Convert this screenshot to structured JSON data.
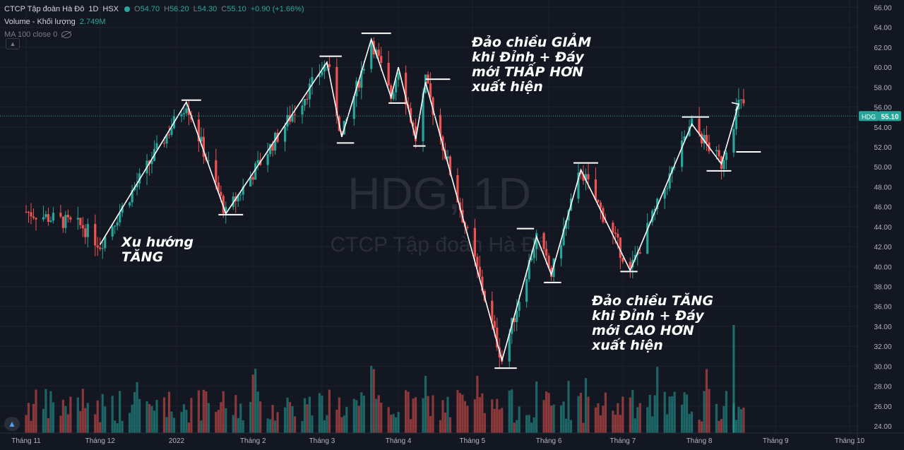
{
  "legend": {
    "symbol": "CTCP Tập đoàn Hà Đô",
    "interval": "1D",
    "exchange": "HSX",
    "o_label": "O",
    "o": "54.70",
    "h_label": "H",
    "h": "56.20",
    "l_label": "L",
    "l": "54.30",
    "c_label": "C",
    "c": "55.10",
    "change": "+0.90 (+1.66%)",
    "volume_label": "Volume - Khối lượng",
    "volume_value": "2.749M",
    "ma_label": "MA 100 close 0"
  },
  "watermark": {
    "symbol": "HDG, 1D",
    "name": "CTCP Tập đoàn Hà Đô"
  },
  "price_tag": {
    "symbol": "HDG",
    "value": "55.10"
  },
  "colors": {
    "bg": "#131722",
    "up": "#26a69a",
    "down": "#ef5350",
    "grid": "#1e222d",
    "annotation": "#ffffff"
  },
  "annotations": {
    "uptrend": [
      "Xu hướng",
      "TĂNG"
    ],
    "reversal_down": [
      "Đảo chiều GIẢM",
      "khi Đỉnh + Đáy",
      "mới THẤP HƠN",
      "xuất hiện"
    ],
    "reversal_up": [
      "Đảo chiều TĂNG",
      "khi Đỉnh + Đáy",
      "mới CAO HƠN",
      "xuất hiện"
    ]
  },
  "icons": {
    "collapse": "chevron-up-icon",
    "logo": "tradingview-logo-icon",
    "live": "status-dot-icon",
    "visibility": "eye-off-icon"
  },
  "chart_data": {
    "type": "candlestick",
    "title": "CTCP Tập đoàn Hà Đô",
    "symbol": "HDG",
    "interval": "1D",
    "y_axis": {
      "ticks": [
        "24.00",
        "26.00",
        "28.00",
        "30.00",
        "32.00",
        "34.00",
        "36.00",
        "38.00",
        "40.00",
        "42.00",
        "44.00",
        "46.00",
        "48.00",
        "50.00",
        "52.00",
        "54.00",
        "56.00",
        "58.00",
        "60.00",
        "62.00",
        "64.00",
        "66.00"
      ],
      "range": [
        23,
        66.5
      ]
    },
    "x_axis": {
      "ticks": [
        "Tháng 11",
        "Tháng 12",
        "2022",
        "Tháng 2",
        "Tháng 3",
        "Tháng 4",
        "Tháng 5",
        "Tháng 6",
        "Tháng 7",
        "Tháng 8",
        "Tháng 9",
        "Tháng 10"
      ]
    },
    "last_price": 55.1,
    "swing_path": [
      {
        "date": "2021-12-01",
        "price": 42.2
      },
      {
        "date": "2022-01-05",
        "price": 56.5
      },
      {
        "date": "2022-01-21",
        "price": 45.3
      },
      {
        "date": "2022-03-03",
        "price": 60.5
      },
      {
        "date": "2022-03-09",
        "price": 53.0
      },
      {
        "date": "2022-03-21",
        "price": 62.8
      },
      {
        "date": "2022-03-29",
        "price": 57.0
      },
      {
        "date": "2022-04-01",
        "price": 60.0
      },
      {
        "date": "2022-04-08",
        "price": 52.8
      },
      {
        "date": "2022-04-12",
        "price": 58.5
      },
      {
        "date": "2022-05-13",
        "price": 30.6
      },
      {
        "date": "2022-05-27",
        "price": 43.0
      },
      {
        "date": "2022-06-02",
        "price": 39.2
      },
      {
        "date": "2022-06-14",
        "price": 49.7
      },
      {
        "date": "2022-07-04",
        "price": 39.6
      },
      {
        "date": "2022-07-29",
        "price": 54.3
      },
      {
        "date": "2022-08-10",
        "price": 50.3
      },
      {
        "date": "2022-08-17",
        "price": 56.3
      }
    ],
    "levels": [
      {
        "from": "2022-01-03",
        "to": "2022-01-11",
        "price": 56.7
      },
      {
        "from": "2022-01-18",
        "to": "2022-01-28",
        "price": 45.2
      },
      {
        "from": "2022-02-28",
        "to": "2022-03-09",
        "price": 61.1
      },
      {
        "from": "2022-03-07",
        "to": "2022-03-14",
        "price": 52.4
      },
      {
        "from": "2022-03-17",
        "to": "2022-03-29",
        "price": 63.4
      },
      {
        "from": "2022-03-28",
        "to": "2022-04-04",
        "price": 56.4
      },
      {
        "from": "2022-04-07",
        "to": "2022-04-12",
        "price": 52.1
      },
      {
        "from": "2022-04-12",
        "to": "2022-04-22",
        "price": 58.8
      },
      {
        "from": "2022-05-10",
        "to": "2022-05-19",
        "price": 29.8
      },
      {
        "from": "2022-05-19",
        "to": "2022-05-26",
        "price": 43.8
      },
      {
        "from": "2022-05-30",
        "to": "2022-06-06",
        "price": 38.4
      },
      {
        "from": "2022-06-11",
        "to": "2022-06-21",
        "price": 50.4
      },
      {
        "from": "2022-06-30",
        "to": "2022-07-07",
        "price": 39.5
      },
      {
        "from": "2022-07-25",
        "to": "2022-08-05",
        "price": 55.0
      },
      {
        "from": "2022-08-04",
        "to": "2022-08-14",
        "price": 49.6
      },
      {
        "from": "2022-08-16",
        "to": "2022-08-26",
        "price": 51.5
      }
    ]
  }
}
